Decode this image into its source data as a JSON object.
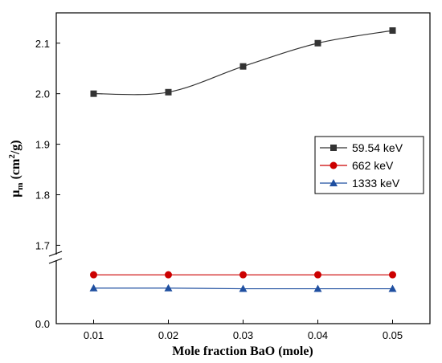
{
  "chart_data": {
    "type": "line",
    "xlabel": "Mole fraction BaO (mole)",
    "ylabel_main": "μ",
    "ylabel_sub": "m",
    "ylabel_unit_pre": " (cm",
    "ylabel_unit_sup": "2",
    "ylabel_unit_post": "/g)",
    "x": [
      0.01,
      0.02,
      0.03,
      0.04,
      0.05
    ],
    "x_tick_labels": [
      "0.01",
      "0.02",
      "0.03",
      "0.04",
      "0.05"
    ],
    "xlim": [
      0.005,
      0.055
    ],
    "y_axis_broken": true,
    "y_upper_segment": {
      "range": [
        1.68,
        2.16
      ],
      "ticks": [
        1.7,
        1.8,
        1.9,
        2.0,
        2.1
      ],
      "tick_labels": [
        "1.7",
        "1.8",
        "1.9",
        "2.0",
        "2.1"
      ]
    },
    "y_lower_segment": {
      "range": [
        0.0,
        0.1
      ],
      "ticks": [
        0.0
      ],
      "tick_labels": [
        "0.0"
      ]
    },
    "series": [
      {
        "name": "59.54 keV",
        "values": [
          2.0,
          2.003,
          2.054,
          2.1,
          2.125
        ],
        "color": "#333333",
        "marker": "square",
        "segment": "upper",
        "curve": "smooth"
      },
      {
        "name": "662 keV",
        "values": [
          0.077,
          0.077,
          0.077,
          0.077,
          0.077
        ],
        "color": "#cc0000",
        "marker": "circle",
        "segment": "lower",
        "curve": "straight"
      },
      {
        "name": "1333 keV",
        "values": [
          0.056,
          0.056,
          0.055,
          0.055,
          0.055
        ],
        "color": "#1f4fa0",
        "marker": "triangle",
        "segment": "lower",
        "curve": "straight"
      }
    ],
    "legend_position": "right-middle",
    "grid": false
  }
}
